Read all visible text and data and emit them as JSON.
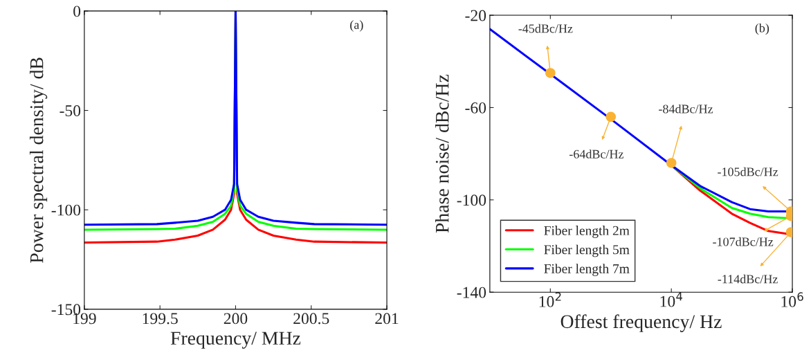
{
  "chart_data": [
    {
      "type": "line",
      "xlabel": "Frequency/ MHz",
      "ylabel": "Power spectral density/ dB",
      "xlim": [
        199,
        201
      ],
      "xticks": [
        199,
        199.5,
        200,
        200.5,
        201
      ],
      "ylim": [
        -150,
        0
      ],
      "yticks": [
        -150,
        -100,
        -50,
        0
      ],
      "grid": false,
      "legend": false,
      "x": [
        199,
        199.48,
        199.6,
        199.75,
        199.85,
        199.93,
        199.97,
        199.99,
        200,
        200.01,
        200.03,
        200.07,
        200.15,
        200.25,
        200.4,
        200.52,
        201
      ],
      "series": [
        {
          "color": "#ff0000",
          "values": [
            -116.5,
            -116,
            -115,
            -113,
            -110,
            -105,
            -100,
            -92,
            0,
            -92,
            -100,
            -105,
            -110,
            -113,
            -115,
            -116,
            -116.5
          ]
        },
        {
          "color": "#00ff00",
          "values": [
            -110,
            -109.7,
            -109.5,
            -108,
            -106,
            -102,
            -98,
            -90,
            0,
            -90,
            -98,
            -102,
            -106,
            -108,
            -109.5,
            -109.7,
            -110
          ]
        },
        {
          "color": "#0000ff",
          "values": [
            -107.5,
            -107.2,
            -106.5,
            -105.5,
            -103.5,
            -100,
            -95,
            -87,
            0,
            -87,
            -95,
            -100,
            -103.5,
            -105.5,
            -106.5,
            -107.2,
            -107.5
          ]
        }
      ],
      "annotations": [
        "(a)"
      ]
    },
    {
      "type": "line",
      "xlabel": "Offest frequency/ Hz",
      "ylabel": "Phase noise/ dBc/Hz",
      "log": "x",
      "xlim": [
        10,
        1000000
      ],
      "xticks": [
        {
          "value": 100,
          "label": "10$^{2}$"
        },
        {
          "value": 10000,
          "label": "10$^{4}$"
        },
        {
          "value": 1000000,
          "label": "10$^{6}$"
        }
      ],
      "ylim": [
        -140,
        -20
      ],
      "yticks": [
        -140,
        -100,
        -60,
        -20
      ],
      "grid": false,
      "legend": "bottom left",
      "series": [
        {
          "name": "Fiber length 2m",
          "color": "#ff0000",
          "x": [
            10000,
            30000,
            100000,
            200000,
            400000,
            950000
          ],
          "values": [
            -85,
            -96,
            -106,
            -110,
            -113.5,
            -115
          ]
        },
        {
          "name": "Fiber length 5m",
          "color": "#00ff00",
          "x": [
            10000,
            30000,
            100000,
            200000,
            400000,
            950000
          ],
          "values": [
            -85,
            -95,
            -103.5,
            -106,
            -107.5,
            -108
          ]
        },
        {
          "name": "Fiber length 7m",
          "color": "#0000ff",
          "x": [
            10,
            100,
            1000,
            10000,
            30000,
            100000,
            200000,
            400000,
            950000
          ],
          "values": [
            -26,
            -45.5,
            -65,
            -85,
            -94,
            -101,
            -104,
            -105,
            -105
          ]
        },
        {
          "type": "scatter",
          "marker": "circle",
          "color": "#f9b233",
          "x": [
            100,
            1000,
            10000,
            950000,
            950000,
            950000
          ],
          "values": [
            -45,
            -64,
            -84,
            -105,
            -107,
            -114
          ]
        }
      ],
      "annotations": [
        {
          "text": "-45dBc/Hz",
          "x": 100,
          "y": -45
        },
        {
          "text": "-64dBc/Hz",
          "x": 1000,
          "y": -64
        },
        {
          "text": "-84dBc/Hz",
          "x": 10000,
          "y": -84
        },
        {
          "text": "-105dBc/Hz",
          "x": 950000,
          "y": -105
        },
        {
          "text": "-107dBc/Hz",
          "x": 950000,
          "y": -107
        },
        {
          "text": "-114dBc/Hz",
          "x": 950000,
          "y": -114
        },
        "(b)"
      ]
    }
  ]
}
